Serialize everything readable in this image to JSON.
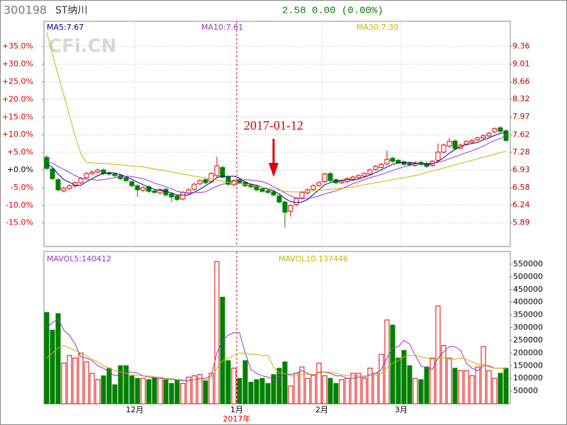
{
  "header": {
    "code": "300198",
    "name": "ST纳川",
    "quote": "2.58 0.00 (0.00%)",
    "watermark": "CFi.CN"
  },
  "chart_data": [
    {
      "type": "candlestick",
      "annotation": "2017-01-12",
      "up_color": "#e00000",
      "down_color": "#008000",
      "grid": true,
      "ylim": [
        5.427,
        9.852
      ],
      "yticks": [
        9.36,
        9.01,
        8.66,
        8.32,
        7.97,
        7.62,
        7.28,
        6.93,
        6.58,
        6.24,
        5.89
      ],
      "y2lim": [
        -21.69,
        42.16
      ],
      "y2ticks": [
        {
          "value": 35,
          "label": "+35.0%"
        },
        {
          "value": 30,
          "label": "+30.0%"
        },
        {
          "value": 25,
          "label": "+25.0%"
        },
        {
          "value": 20,
          "label": "+20.0%"
        },
        {
          "value": 15,
          "label": "+15.0%"
        },
        {
          "value": 10,
          "label": "+10.0%"
        },
        {
          "value": 5,
          "label": "+5.0%"
        },
        {
          "value": 0,
          "label": "+0.0%"
        },
        {
          "value": -5,
          "label": "-5.0%"
        },
        {
          "value": -10,
          "label": "-10.0%"
        },
        {
          "value": -15,
          "label": "-15.0%"
        }
      ],
      "open": [
        7.18,
        6.95,
        6.74,
        6.52,
        6.57,
        6.62,
        6.68,
        6.78,
        6.86,
        6.89,
        6.93,
        6.87,
        6.85,
        6.82,
        6.78,
        6.7,
        6.62,
        6.53,
        6.6,
        6.52,
        6.48,
        6.55,
        6.46,
        6.42,
        6.36,
        6.48,
        6.55,
        6.66,
        6.74,
        6.7,
        6.82,
        6.98,
        6.8,
        6.64,
        6.74,
        6.69,
        6.64,
        6.61,
        6.56,
        6.52,
        6.5,
        6.42,
        6.3,
        6.12,
        6.25,
        6.38,
        6.48,
        6.55,
        6.63,
        6.7,
        6.86,
        6.74,
        6.68,
        6.7,
        6.75,
        6.78,
        6.81,
        6.85,
        6.94,
        6.98,
        7.05,
        7.16,
        7.12,
        7.09,
        7.06,
        7.02,
        7.08,
        7.06,
        7.02,
        7.12,
        7.28,
        7.4,
        7.5,
        7.36,
        7.44,
        7.48,
        7.52,
        7.56,
        7.6,
        7.68,
        7.76,
        7.7
      ],
      "high": [
        7.22,
        6.98,
        6.77,
        6.6,
        6.65,
        6.71,
        6.79,
        6.89,
        6.92,
        6.96,
        6.96,
        6.9,
        6.88,
        6.85,
        6.81,
        6.73,
        6.65,
        6.61,
        6.63,
        6.55,
        6.57,
        6.58,
        6.49,
        6.45,
        6.52,
        6.57,
        6.68,
        6.75,
        6.77,
        6.89,
        7.19,
        7.01,
        6.83,
        6.75,
        6.77,
        6.72,
        6.67,
        6.64,
        6.59,
        6.55,
        6.53,
        6.45,
        6.33,
        6.26,
        6.4,
        6.52,
        6.57,
        6.65,
        6.71,
        6.88,
        6.89,
        6.77,
        6.74,
        6.79,
        6.82,
        6.85,
        6.89,
        6.96,
        7.03,
        7.07,
        7.31,
        7.19,
        7.15,
        7.12,
        7.09,
        7.1,
        7.11,
        7.09,
        7.13,
        7.45,
        7.45,
        7.56,
        7.53,
        7.45,
        7.52,
        7.54,
        7.59,
        7.63,
        7.68,
        7.77,
        7.79,
        7.73
      ],
      "low": [
        6.93,
        6.73,
        6.51,
        6.49,
        6.54,
        6.59,
        6.65,
        6.75,
        6.83,
        6.86,
        6.83,
        6.82,
        6.79,
        6.73,
        6.69,
        6.59,
        6.4,
        6.5,
        6.48,
        6.46,
        6.45,
        6.41,
        6.3,
        6.32,
        6.33,
        6.45,
        6.52,
        6.63,
        6.65,
        6.67,
        6.79,
        6.76,
        6.62,
        6.61,
        6.65,
        6.59,
        6.57,
        6.51,
        6.48,
        6.46,
        6.41,
        6.27,
        5.8,
        6.02,
        6.22,
        6.35,
        6.45,
        6.52,
        6.6,
        6.67,
        6.69,
        6.65,
        6.65,
        6.67,
        6.72,
        6.75,
        6.78,
        6.82,
        6.91,
        6.95,
        7.02,
        7.07,
        7.04,
        7.01,
        7.0,
        6.99,
        7.01,
        6.97,
        6.99,
        7.09,
        7.25,
        7.37,
        7.32,
        7.33,
        7.41,
        7.45,
        7.49,
        7.53,
        7.57,
        7.65,
        7.66,
        7.48
      ],
      "close": [
        6.96,
        6.76,
        6.54,
        6.57,
        6.62,
        6.68,
        6.76,
        6.86,
        6.89,
        6.93,
        6.86,
        6.85,
        6.82,
        6.76,
        6.72,
        6.62,
        6.54,
        6.58,
        6.51,
        6.49,
        6.54,
        6.44,
        6.4,
        6.35,
        6.49,
        6.54,
        6.65,
        6.72,
        6.68,
        6.86,
        7.01,
        6.79,
        6.65,
        6.72,
        6.68,
        6.62,
        6.6,
        6.54,
        6.51,
        6.49,
        6.44,
        6.3,
        6.1,
        6.23,
        6.37,
        6.49,
        6.54,
        6.62,
        6.68,
        6.85,
        6.72,
        6.68,
        6.71,
        6.76,
        6.79,
        6.82,
        6.86,
        6.93,
        7.0,
        7.04,
        7.14,
        7.1,
        7.07,
        7.04,
        7.03,
        7.07,
        7.04,
        7.0,
        7.1,
        7.28,
        7.42,
        7.49,
        7.35,
        7.42,
        7.49,
        7.51,
        7.56,
        7.6,
        7.65,
        7.74,
        7.69,
        7.51
      ],
      "series": [
        {
          "name": "MA5:7.67",
          "color": "#000080",
          "values": [
            7.05,
            6.98,
            6.85,
            6.74,
            6.69,
            6.63,
            6.63,
            6.7,
            6.76,
            6.82,
            6.86,
            6.88,
            6.87,
            6.84,
            6.8,
            6.75,
            6.69,
            6.64,
            6.59,
            6.55,
            6.53,
            6.51,
            6.48,
            6.44,
            6.44,
            6.44,
            6.49,
            6.55,
            6.62,
            6.69,
            6.78,
            6.81,
            6.8,
            6.81,
            6.77,
            6.69,
            6.65,
            6.63,
            6.59,
            6.55,
            6.52,
            6.46,
            6.37,
            6.31,
            6.29,
            6.3,
            6.35,
            6.45,
            6.54,
            6.64,
            6.68,
            6.71,
            6.73,
            6.74,
            6.73,
            6.75,
            6.79,
            6.83,
            6.88,
            6.93,
            6.99,
            7.04,
            7.07,
            7.08,
            7.08,
            7.06,
            7.05,
            7.04,
            7.05,
            7.1,
            7.17,
            7.26,
            7.33,
            7.39,
            7.43,
            7.45,
            7.47,
            7.52,
            7.56,
            7.61,
            7.65,
            7.67
          ]
        },
        {
          "name": "MA10:7.61",
          "color": "#9932cc",
          "values": [
            7.1,
            7.06,
            7.0,
            6.94,
            6.88,
            6.82,
            6.77,
            6.75,
            6.74,
            6.73,
            6.74,
            6.76,
            6.78,
            6.8,
            6.81,
            6.8,
            6.78,
            6.76,
            6.72,
            6.67,
            6.64,
            6.6,
            6.56,
            6.51,
            6.49,
            6.48,
            6.49,
            6.49,
            6.5,
            6.56,
            6.61,
            6.65,
            6.68,
            6.71,
            6.73,
            6.74,
            6.73,
            6.72,
            6.7,
            6.66,
            6.6,
            6.55,
            6.48,
            6.42,
            6.38,
            6.37,
            6.37,
            6.39,
            6.42,
            6.46,
            6.49,
            6.52,
            6.56,
            6.61,
            6.66,
            6.7,
            6.74,
            6.78,
            6.81,
            6.84,
            6.88,
            6.92,
            6.96,
            6.99,
            7.02,
            7.05,
            7.06,
            7.06,
            7.06,
            7.08,
            7.11,
            7.15,
            7.19,
            7.23,
            7.27,
            7.31,
            7.35,
            7.4,
            7.46,
            7.51,
            7.55,
            7.61
          ]
        },
        {
          "name": "MA30:7.30",
          "color": "#c8b400",
          "values": [
            9.64,
            9.2,
            8.8,
            8.4,
            8.0,
            7.6,
            7.25,
            7.08,
            7.07,
            7.06,
            7.06,
            7.05,
            7.04,
            7.03,
            7.02,
            7.01,
            7.0,
            6.99,
            6.97,
            6.95,
            6.93,
            6.91,
            6.89,
            6.87,
            6.85,
            6.83,
            6.81,
            6.79,
            6.77,
            6.75,
            6.73,
            6.71,
            6.69,
            6.67,
            6.66,
            6.65,
            6.63,
            6.61,
            6.59,
            6.57,
            6.55,
            6.53,
            6.51,
            6.5,
            6.5,
            6.5,
            6.51,
            6.52,
            6.53,
            6.54,
            6.55,
            6.56,
            6.57,
            6.58,
            6.6,
            6.62,
            6.64,
            6.66,
            6.68,
            6.7,
            6.72,
            6.74,
            6.76,
            6.78,
            6.8,
            6.82,
            6.85,
            6.88,
            6.91,
            6.94,
            6.97,
            7.0,
            7.03,
            7.06,
            7.09,
            7.12,
            7.15,
            7.18,
            7.21,
            7.24,
            7.27,
            7.3
          ]
        }
      ]
    },
    {
      "type": "bar",
      "year_label": "2017年",
      "grid": false,
      "categories": [
        null,
        null,
        null,
        null,
        null,
        null,
        null,
        null,
        null,
        null,
        null,
        null,
        null,
        null,
        null,
        null,
        "12月",
        null,
        null,
        null,
        null,
        null,
        null,
        null,
        null,
        null,
        null,
        null,
        null,
        null,
        null,
        null,
        null,
        null,
        "1月",
        null,
        null,
        null,
        null,
        null,
        null,
        null,
        null,
        null,
        null,
        null,
        null,
        null,
        null,
        "2月",
        null,
        null,
        null,
        null,
        null,
        null,
        null,
        null,
        null,
        null,
        null,
        null,
        null,
        "3月",
        null,
        null,
        null,
        null,
        null,
        null,
        null,
        null,
        null,
        null,
        null,
        null,
        null,
        null,
        null,
        null,
        null,
        null
      ],
      "ylim": [
        0,
        600000
      ],
      "yticks": [
        550000,
        500000,
        450000,
        400000,
        350000,
        300000,
        250000,
        200000,
        150000,
        100000,
        50000
      ],
      "values": [
        360000,
        290000,
        355000,
        160000,
        190000,
        180000,
        200000,
        165000,
        120000,
        95000,
        110000,
        140000,
        75000,
        150000,
        150000,
        110000,
        100000,
        100000,
        95000,
        105000,
        100000,
        95000,
        80000,
        95000,
        80000,
        105000,
        110000,
        115000,
        90000,
        120000,
        560000,
        420000,
        170000,
        140000,
        100000,
        170000,
        85000,
        95000,
        100000,
        80000,
        115000,
        140000,
        165000,
        70000,
        120000,
        145000,
        100000,
        115000,
        160000,
        110000,
        100000,
        80000,
        95000,
        100000,
        120000,
        120000,
        100000,
        140000,
        120000,
        195000,
        330000,
        310000,
        180000,
        210000,
        150000,
        100000,
        95000,
        145000,
        180000,
        385000,
        230000,
        180000,
        140000,
        130000,
        130000,
        110000,
        145000,
        225000,
        130000,
        100000,
        120000,
        140000
      ],
      "series": [
        {
          "name": "MAVOL5:140412",
          "color": "#9932cc",
          "values": [
            300000,
            320000,
            335000,
            290000,
            270000,
            235000,
            185000,
            180000,
            170000,
            150000,
            140000,
            125000,
            110000,
            115000,
            125000,
            125000,
            120000,
            110000,
            105000,
            100000,
            100000,
            100000,
            95000,
            95000,
            90000,
            90000,
            95000,
            100000,
            100000,
            110000,
            200000,
            250000,
            270000,
            280000,
            280000,
            200000,
            135000,
            120000,
            110000,
            105000,
            95000,
            105000,
            120000,
            115000,
            120000,
            130000,
            120000,
            110000,
            125000,
            125000,
            120000,
            110000,
            110000,
            100000,
            100000,
            105000,
            105000,
            115000,
            120000,
            135000,
            180000,
            220000,
            225000,
            250000,
            235000,
            190000,
            150000,
            140000,
            135000,
            180000,
            205000,
            225000,
            225000,
            210000,
            160000,
            140000,
            130000,
            150000,
            150000,
            140000,
            140000,
            140412
          ]
        },
        {
          "name": "MAVOL10:137446",
          "color": "#c8b400",
          "values": [
            180000,
            200000,
            220000,
            230000,
            220000,
            210000,
            200000,
            190000,
            175000,
            165000,
            150000,
            140000,
            130000,
            125000,
            120000,
            115000,
            110000,
            110000,
            110000,
            105000,
            105000,
            100000,
            100000,
            95000,
            95000,
            95000,
            95000,
            95000,
            95000,
            100000,
            140000,
            170000,
            180000,
            190000,
            200000,
            200000,
            195000,
            195000,
            190000,
            190000,
            145000,
            120000,
            120000,
            110000,
            110000,
            115000,
            115000,
            115000,
            120000,
            125000,
            125000,
            120000,
            115000,
            110000,
            110000,
            110000,
            110000,
            110000,
            110000,
            120000,
            140000,
            160000,
            170000,
            185000,
            190000,
            190000,
            185000,
            180000,
            175000,
            180000,
            180000,
            175000,
            175000,
            180000,
            175000,
            165000,
            155000,
            155000,
            145000,
            140000,
            140000,
            137446
          ]
        }
      ]
    }
  ]
}
